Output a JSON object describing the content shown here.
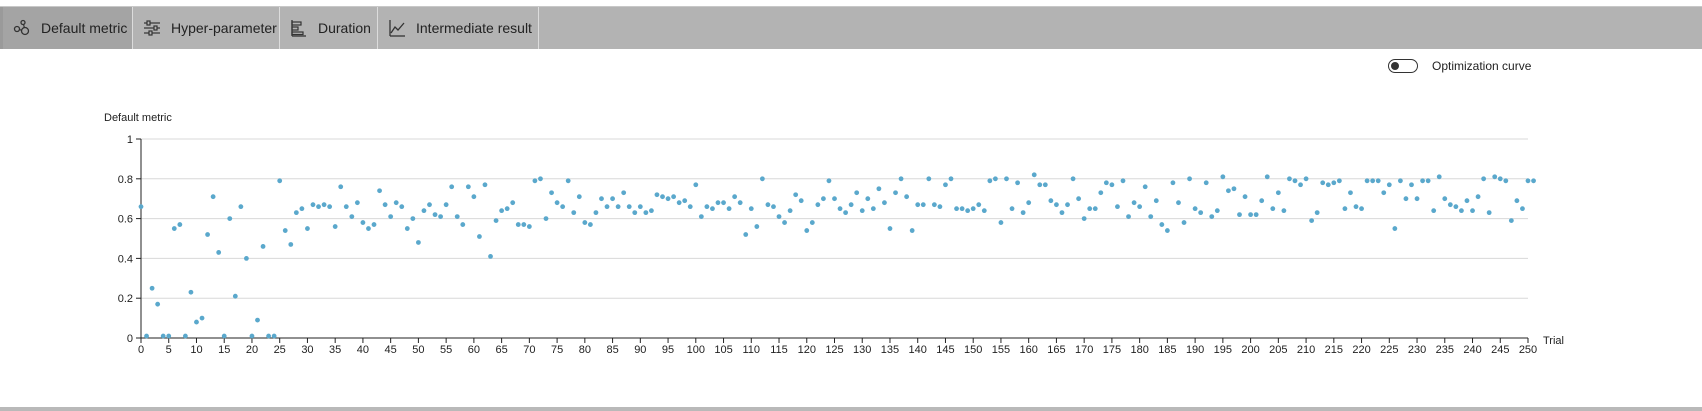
{
  "tabs": [
    {
      "label": "Default metric",
      "icon": "nodes-icon",
      "active": true
    },
    {
      "label": "Hyper-parameter",
      "icon": "sliders-icon",
      "active": false
    },
    {
      "label": "Duration",
      "icon": "bar-chart-icon",
      "active": false
    },
    {
      "label": "Intermediate result",
      "icon": "line-chart-icon",
      "active": false
    }
  ],
  "toggle": {
    "label": "Optimization curve",
    "on": false
  },
  "chart_data": {
    "type": "scatter",
    "ylabel": "Default metric",
    "xlabel": "Trial",
    "xlim": [
      0,
      250
    ],
    "ylim": [
      0,
      1
    ],
    "xticks": [
      "0",
      "5",
      "10",
      "15",
      "20",
      "25",
      "30",
      "35",
      "40",
      "45",
      "50",
      "55",
      "60",
      "65",
      "70",
      "75",
      "80",
      "85",
      "90",
      "95",
      "100",
      "105",
      "110",
      "115",
      "120",
      "125",
      "130",
      "135",
      "140",
      "145",
      "150",
      "155",
      "160",
      "165",
      "170",
      "175",
      "180",
      "185",
      "190",
      "195",
      "200",
      "205",
      "210",
      "215",
      "220",
      "225",
      "230",
      "235",
      "240",
      "245",
      "250"
    ],
    "yticks": [
      "0",
      "0.2",
      "0.4",
      "0.6",
      "0.8",
      "1"
    ],
    "grid": true,
    "point_color": "#5aa8cc",
    "points": [
      [
        0,
        0.66
      ],
      [
        1,
        0.01
      ],
      [
        2,
        0.25
      ],
      [
        3,
        0.17
      ],
      [
        4,
        0.01
      ],
      [
        5,
        0.01
      ],
      [
        6,
        0.55
      ],
      [
        7,
        0.57
      ],
      [
        8,
        0.01
      ],
      [
        9,
        0.23
      ],
      [
        10,
        0.08
      ],
      [
        11,
        0.1
      ],
      [
        12,
        0.52
      ],
      [
        13,
        0.71
      ],
      [
        14,
        0.43
      ],
      [
        15,
        0.01
      ],
      [
        16,
        0.6
      ],
      [
        17,
        0.21
      ],
      [
        18,
        0.66
      ],
      [
        19,
        0.4
      ],
      [
        20,
        0.01
      ],
      [
        21,
        0.09
      ],
      [
        22,
        0.46
      ],
      [
        23,
        0.01
      ],
      [
        24,
        0.01
      ],
      [
        25,
        0.79
      ],
      [
        26,
        0.54
      ],
      [
        27,
        0.47
      ],
      [
        28,
        0.63
      ],
      [
        29,
        0.65
      ],
      [
        30,
        0.55
      ],
      [
        31,
        0.67
      ],
      [
        32,
        0.66
      ],
      [
        33,
        0.67
      ],
      [
        34,
        0.66
      ],
      [
        35,
        0.56
      ],
      [
        36,
        0.76
      ],
      [
        37,
        0.66
      ],
      [
        38,
        0.61
      ],
      [
        39,
        0.68
      ],
      [
        40,
        0.58
      ],
      [
        41,
        0.55
      ],
      [
        42,
        0.57
      ],
      [
        43,
        0.74
      ],
      [
        44,
        0.67
      ],
      [
        45,
        0.61
      ],
      [
        46,
        0.68
      ],
      [
        47,
        0.66
      ],
      [
        48,
        0.55
      ],
      [
        49,
        0.6
      ],
      [
        50,
        0.48
      ],
      [
        51,
        0.64
      ],
      [
        52,
        0.67
      ],
      [
        53,
        0.62
      ],
      [
        54,
        0.61
      ],
      [
        55,
        0.67
      ],
      [
        56,
        0.76
      ],
      [
        57,
        0.61
      ],
      [
        58,
        0.57
      ],
      [
        59,
        0.76
      ],
      [
        60,
        0.71
      ],
      [
        61,
        0.51
      ],
      [
        62,
        0.77
      ],
      [
        63,
        0.41
      ],
      [
        64,
        0.59
      ],
      [
        65,
        0.64
      ],
      [
        66,
        0.65
      ],
      [
        67,
        0.68
      ],
      [
        68,
        0.57
      ],
      [
        69,
        0.57
      ],
      [
        70,
        0.56
      ],
      [
        71,
        0.79
      ],
      [
        72,
        0.8
      ],
      [
        73,
        0.6
      ],
      [
        74,
        0.73
      ],
      [
        75,
        0.68
      ],
      [
        76,
        0.66
      ],
      [
        77,
        0.79
      ],
      [
        78,
        0.63
      ],
      [
        79,
        0.71
      ],
      [
        80,
        0.58
      ],
      [
        81,
        0.57
      ],
      [
        82,
        0.63
      ],
      [
        83,
        0.7
      ],
      [
        84,
        0.66
      ],
      [
        85,
        0.7
      ],
      [
        86,
        0.66
      ],
      [
        87,
        0.73
      ],
      [
        88,
        0.66
      ],
      [
        89,
        0.63
      ],
      [
        90,
        0.66
      ],
      [
        91,
        0.63
      ],
      [
        92,
        0.64
      ],
      [
        93,
        0.72
      ],
      [
        94,
        0.71
      ],
      [
        95,
        0.7
      ],
      [
        96,
        0.71
      ],
      [
        97,
        0.68
      ],
      [
        98,
        0.69
      ],
      [
        99,
        0.66
      ],
      [
        100,
        0.77
      ],
      [
        101,
        0.61
      ],
      [
        102,
        0.66
      ],
      [
        103,
        0.65
      ],
      [
        104,
        0.68
      ],
      [
        105,
        0.68
      ],
      [
        106,
        0.65
      ],
      [
        107,
        0.71
      ],
      [
        108,
        0.68
      ],
      [
        109,
        0.52
      ],
      [
        110,
        0.65
      ],
      [
        111,
        0.56
      ],
      [
        112,
        0.8
      ],
      [
        113,
        0.67
      ],
      [
        114,
        0.66
      ],
      [
        115,
        0.61
      ],
      [
        116,
        0.58
      ],
      [
        117,
        0.64
      ],
      [
        118,
        0.72
      ],
      [
        119,
        0.69
      ],
      [
        120,
        0.54
      ],
      [
        121,
        0.58
      ],
      [
        122,
        0.67
      ],
      [
        123,
        0.7
      ],
      [
        124,
        0.79
      ],
      [
        125,
        0.7
      ],
      [
        126,
        0.65
      ],
      [
        127,
        0.63
      ],
      [
        128,
        0.67
      ],
      [
        129,
        0.73
      ],
      [
        130,
        0.64
      ],
      [
        131,
        0.7
      ],
      [
        132,
        0.65
      ],
      [
        133,
        0.75
      ],
      [
        134,
        0.68
      ],
      [
        135,
        0.55
      ],
      [
        136,
        0.73
      ],
      [
        137,
        0.8
      ],
      [
        138,
        0.71
      ],
      [
        139,
        0.54
      ],
      [
        140,
        0.67
      ],
      [
        141,
        0.67
      ],
      [
        142,
        0.8
      ],
      [
        143,
        0.67
      ],
      [
        144,
        0.66
      ],
      [
        145,
        0.77
      ],
      [
        146,
        0.8
      ],
      [
        147,
        0.65
      ],
      [
        148,
        0.65
      ],
      [
        149,
        0.64
      ],
      [
        150,
        0.65
      ],
      [
        151,
        0.67
      ],
      [
        152,
        0.64
      ],
      [
        153,
        0.79
      ],
      [
        154,
        0.8
      ],
      [
        155,
        0.58
      ],
      [
        156,
        0.8
      ],
      [
        157,
        0.65
      ],
      [
        158,
        0.78
      ],
      [
        159,
        0.63
      ],
      [
        160,
        0.68
      ],
      [
        161,
        0.82
      ],
      [
        162,
        0.77
      ],
      [
        163,
        0.77
      ],
      [
        164,
        0.69
      ],
      [
        165,
        0.67
      ],
      [
        166,
        0.63
      ],
      [
        167,
        0.67
      ],
      [
        168,
        0.8
      ],
      [
        169,
        0.7
      ],
      [
        170,
        0.6
      ],
      [
        171,
        0.65
      ],
      [
        172,
        0.65
      ],
      [
        173,
        0.73
      ],
      [
        174,
        0.78
      ],
      [
        175,
        0.77
      ],
      [
        176,
        0.66
      ],
      [
        177,
        0.79
      ],
      [
        178,
        0.61
      ],
      [
        179,
        0.68
      ],
      [
        180,
        0.66
      ],
      [
        181,
        0.76
      ],
      [
        182,
        0.61
      ],
      [
        183,
        0.69
      ],
      [
        184,
        0.57
      ],
      [
        185,
        0.54
      ],
      [
        186,
        0.78
      ],
      [
        187,
        0.68
      ],
      [
        188,
        0.58
      ],
      [
        189,
        0.8
      ],
      [
        190,
        0.65
      ],
      [
        191,
        0.63
      ],
      [
        192,
        0.78
      ],
      [
        193,
        0.61
      ],
      [
        194,
        0.64
      ],
      [
        195,
        0.81
      ],
      [
        196,
        0.74
      ],
      [
        197,
        0.75
      ],
      [
        198,
        0.62
      ],
      [
        199,
        0.71
      ],
      [
        200,
        0.62
      ],
      [
        201,
        0.62
      ],
      [
        202,
        0.69
      ],
      [
        203,
        0.81
      ],
      [
        204,
        0.65
      ],
      [
        205,
        0.73
      ],
      [
        206,
        0.64
      ],
      [
        207,
        0.8
      ],
      [
        208,
        0.79
      ],
      [
        209,
        0.77
      ],
      [
        210,
        0.8
      ],
      [
        211,
        0.59
      ],
      [
        212,
        0.63
      ],
      [
        213,
        0.78
      ],
      [
        214,
        0.77
      ],
      [
        215,
        0.78
      ],
      [
        216,
        0.79
      ],
      [
        217,
        0.65
      ],
      [
        218,
        0.73
      ],
      [
        219,
        0.66
      ],
      [
        220,
        0.65
      ],
      [
        221,
        0.79
      ],
      [
        222,
        0.79
      ],
      [
        223,
        0.79
      ],
      [
        224,
        0.73
      ],
      [
        225,
        0.77
      ],
      [
        226,
        0.55
      ],
      [
        227,
        0.79
      ],
      [
        228,
        0.7
      ],
      [
        229,
        0.77
      ],
      [
        230,
        0.7
      ],
      [
        231,
        0.79
      ],
      [
        232,
        0.79
      ],
      [
        233,
        0.64
      ],
      [
        234,
        0.81
      ],
      [
        235,
        0.7
      ],
      [
        236,
        0.67
      ],
      [
        237,
        0.66
      ],
      [
        238,
        0.64
      ],
      [
        239,
        0.69
      ],
      [
        240,
        0.64
      ],
      [
        241,
        0.71
      ],
      [
        242,
        0.8
      ],
      [
        243,
        0.63
      ],
      [
        244,
        0.81
      ],
      [
        245,
        0.8
      ],
      [
        246,
        0.79
      ],
      [
        247,
        0.59
      ],
      [
        248,
        0.69
      ],
      [
        249,
        0.65
      ],
      [
        250,
        0.79
      ],
      [
        251,
        0.79
      ]
    ]
  }
}
